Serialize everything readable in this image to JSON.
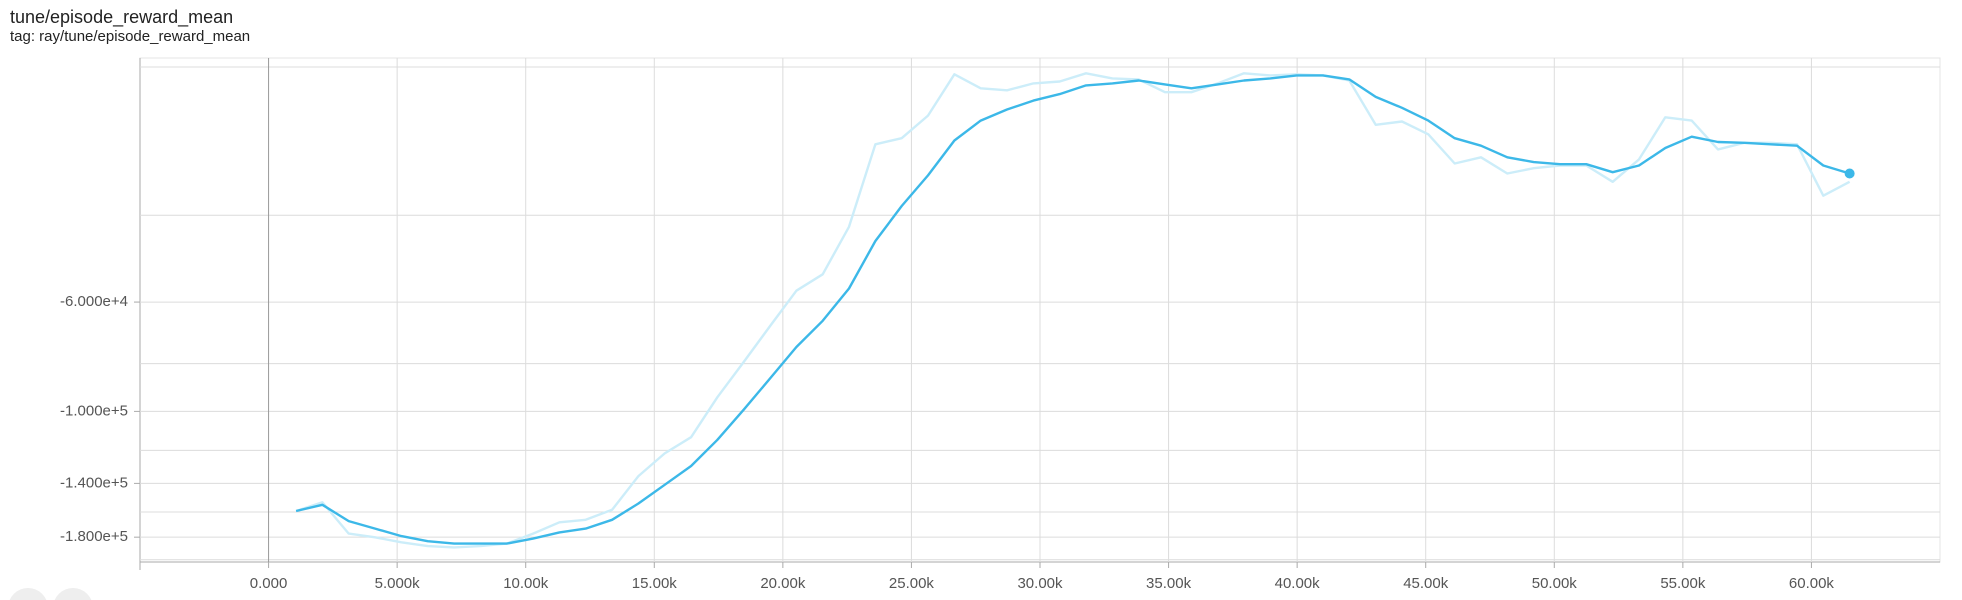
{
  "chart_data": {
    "type": "line",
    "title": "tune/episode_reward_mean",
    "subtitle": "tag: ray/tune/episode_reward_mean",
    "x": [
      1070,
      2094,
      3118,
      4142,
      5166,
      6190,
      7214,
      8238,
      9262,
      10286,
      11310,
      12334,
      13358,
      14382,
      15406,
      16430,
      17454,
      18478,
      19502,
      20526,
      21550,
      22574,
      23598,
      24622,
      25646,
      26670,
      27694,
      28718,
      29742,
      30766,
      31790,
      32814,
      33838,
      34862,
      35886,
      36910,
      37934,
      38958,
      39982,
      41006,
      42030,
      43054,
      44078,
      45102,
      46126,
      47150,
      48174,
      49198,
      50222,
      51246,
      52270,
      53294,
      54318,
      55342,
      56366,
      57390,
      58414,
      59438,
      60462,
      61486
    ],
    "series": [
      {
        "color": "#ccedf9",
        "values": [
          -159300,
          -152900,
          -177000,
          -180100,
          -184400,
          -187700,
          -188800,
          -187700,
          -185500,
          -177000,
          -167900,
          -166000,
          -158400,
          -135300,
          -121700,
          -112800,
          -93600,
          -79400,
          -67100,
          -56900,
          -52700,
          -42200,
          -28700,
          -27900,
          -25100,
          -20700,
          -22100,
          -22300,
          -21600,
          -21400,
          -20600,
          -21100,
          -21200,
          -22500,
          -22500,
          -21600,
          -20600,
          -20800,
          -20700,
          -20800,
          -21300,
          -26200,
          -25800,
          -27400,
          -31400,
          -30500,
          -32900,
          -32100,
          -31700,
          -31700,
          -34200,
          -30800,
          -25300,
          -25700,
          -29400,
          -28500,
          -28500,
          -28700,
          -36500,
          -34200
        ]
      },
      {
        "color": "#3cb8e8",
        "end_marker": true,
        "values": [
          -159300,
          -154700,
          -167000,
          -172900,
          -179100,
          -183400,
          -185500,
          -185500,
          -185500,
          -181200,
          -176000,
          -172900,
          -166000,
          -153800,
          -140900,
          -129100,
          -114200,
          -99200,
          -85700,
          -74000,
          -65500,
          -56300,
          -45100,
          -38300,
          -33200,
          -28200,
          -25700,
          -24400,
          -23400,
          -22700,
          -21800,
          -21600,
          -21300,
          -21700,
          -22100,
          -21700,
          -21300,
          -21100,
          -20800,
          -20800,
          -21200,
          -23000,
          -24200,
          -25700,
          -27900,
          -28900,
          -30500,
          -31200,
          -31500,
          -31500,
          -32700,
          -31700,
          -29200,
          -27700,
          -28400,
          -28500,
          -28700,
          -28900,
          -31700,
          -32900
        ]
      }
    ],
    "xlim": [
      -5000,
      65000
    ],
    "xticks": [
      {
        "value": 0,
        "label": "0.000"
      },
      {
        "value": 5000,
        "label": "5.000k"
      },
      {
        "value": 10000,
        "label": "10.00k"
      },
      {
        "value": 15000,
        "label": "15.00k"
      },
      {
        "value": 20000,
        "label": "20.00k"
      },
      {
        "value": 25000,
        "label": "25.00k"
      },
      {
        "value": 30000,
        "label": "30.00k"
      },
      {
        "value": 35000,
        "label": "35.00k"
      },
      {
        "value": 40000,
        "label": "40.00k"
      },
      {
        "value": 45000,
        "label": "45.00k"
      },
      {
        "value": 50000,
        "label": "50.00k"
      },
      {
        "value": 55000,
        "label": "55.00k"
      },
      {
        "value": 60000,
        "label": "60.00k"
      }
    ],
    "ylim": [
      -205000,
      -19000
    ],
    "log_scale": true,
    "yticks": [
      {
        "value": -60000,
        "label": "-6.000e+4"
      },
      {
        "value": -100000,
        "label": "-1.000e+5"
      },
      {
        "value": -140000,
        "label": "-1.400e+5"
      },
      {
        "value": -180000,
        "label": "-1.800e+5"
      }
    ],
    "ygrid": [
      -20000,
      -40000,
      -60000,
      -80000,
      -100000,
      -120000,
      -140000,
      -160000,
      -180000,
      -200000
    ],
    "grid": true
  }
}
